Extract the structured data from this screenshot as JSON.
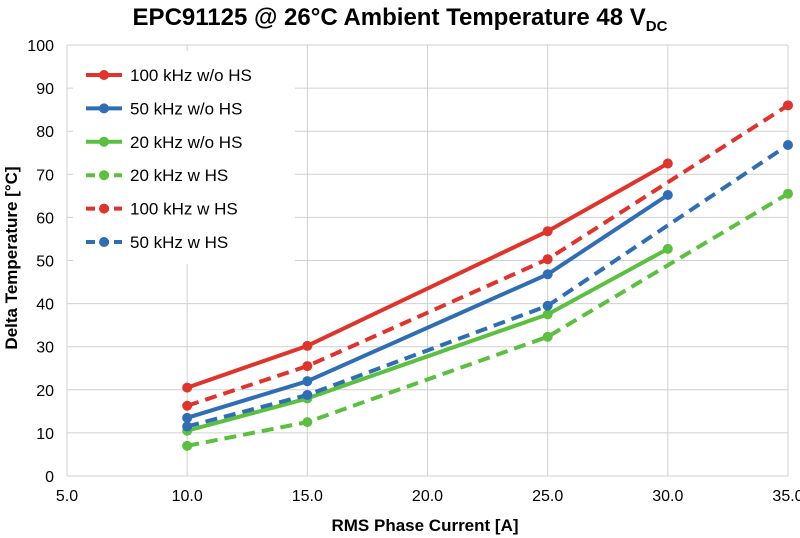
{
  "chart_data": {
    "type": "line",
    "title": "EPC91125 @ 26°C Ambient Temperature 48 V",
    "title_subscript": "DC",
    "xlabel": "RMS Phase Current [A]",
    "ylabel": "Delta Temperature [°C]",
    "xlim": [
      5.0,
      35.0
    ],
    "ylim": [
      0,
      100
    ],
    "x_ticks": [
      "5.0",
      "10.0",
      "15.0",
      "20.0",
      "25.0",
      "30.0",
      "35.0"
    ],
    "y_ticks": [
      "0",
      "10",
      "20",
      "30",
      "40",
      "50",
      "60",
      "70",
      "80",
      "90",
      "100"
    ],
    "grid": true,
    "legend_position": "top-left",
    "series": [
      {
        "name": "100 kHz w/o HS",
        "color": "#e0332b",
        "dashed": false,
        "x": [
          10,
          15,
          25,
          30
        ],
        "y": [
          20.5,
          30.2,
          56.8,
          72.5
        ]
      },
      {
        "name": "50 kHz w/o HS",
        "color": "#2f6db5",
        "dashed": false,
        "x": [
          10,
          15,
          25,
          30
        ],
        "y": [
          13.5,
          22.0,
          46.8,
          65.2
        ]
      },
      {
        "name": "20 kHz w/o HS",
        "color": "#5bbf3f",
        "dashed": false,
        "x": [
          10,
          15,
          25,
          30
        ],
        "y": [
          10.5,
          18.0,
          37.5,
          52.7
        ]
      },
      {
        "name": "20 kHz w HS",
        "color": "#5bbf3f",
        "dashed": true,
        "x": [
          10,
          15,
          25,
          35
        ],
        "y": [
          7.0,
          12.5,
          32.3,
          65.5
        ]
      },
      {
        "name": "100 kHz w HS",
        "color": "#e0332b",
        "dashed": true,
        "x": [
          10,
          15,
          25,
          35
        ],
        "y": [
          16.3,
          25.5,
          50.3,
          86.0
        ]
      },
      {
        "name": "50 kHz w HS",
        "color": "#2f6db5",
        "dashed": true,
        "x": [
          10,
          15,
          25,
          35
        ],
        "y": [
          11.5,
          18.8,
          39.5,
          76.8
        ]
      }
    ]
  }
}
